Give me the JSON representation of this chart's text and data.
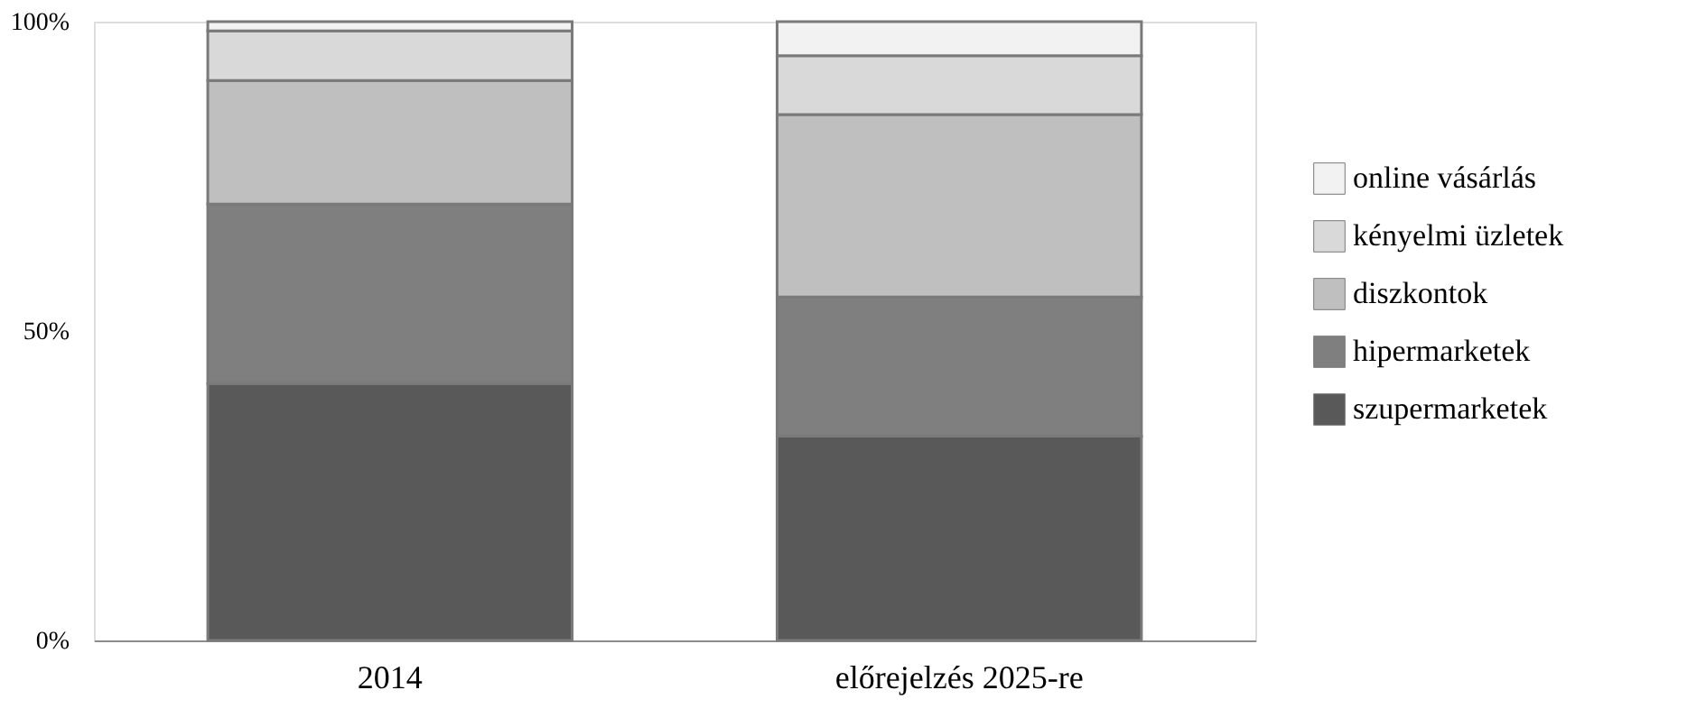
{
  "chart_data": {
    "type": "bar",
    "stacked": true,
    "categories": [
      "2014",
      "előrejelzés 2025-re"
    ],
    "series": [
      {
        "name": "szupermarketek",
        "color": "#595959",
        "values": [
          41.5,
          33
        ]
      },
      {
        "name": "hipermarketek",
        "color": "#7f7f7f",
        "values": [
          29,
          22.5
        ]
      },
      {
        "name": "diszkontok",
        "color": "#bfbfbf",
        "values": [
          20,
          29.5
        ]
      },
      {
        "name": "kényelmi üzletek",
        "color": "#d9d9d9",
        "values": [
          8,
          9.5
        ]
      },
      {
        "name": "online vásárlás",
        "color": "#f2f2f2",
        "values": [
          1.5,
          5.5
        ]
      }
    ],
    "ylim": [
      0,
      100
    ],
    "yticks": [
      {
        "value": 0,
        "label": "0%"
      },
      {
        "value": 50,
        "label": "50%"
      },
      {
        "value": 100,
        "label": "100%"
      }
    ],
    "grid": false,
    "legend": "right"
  }
}
